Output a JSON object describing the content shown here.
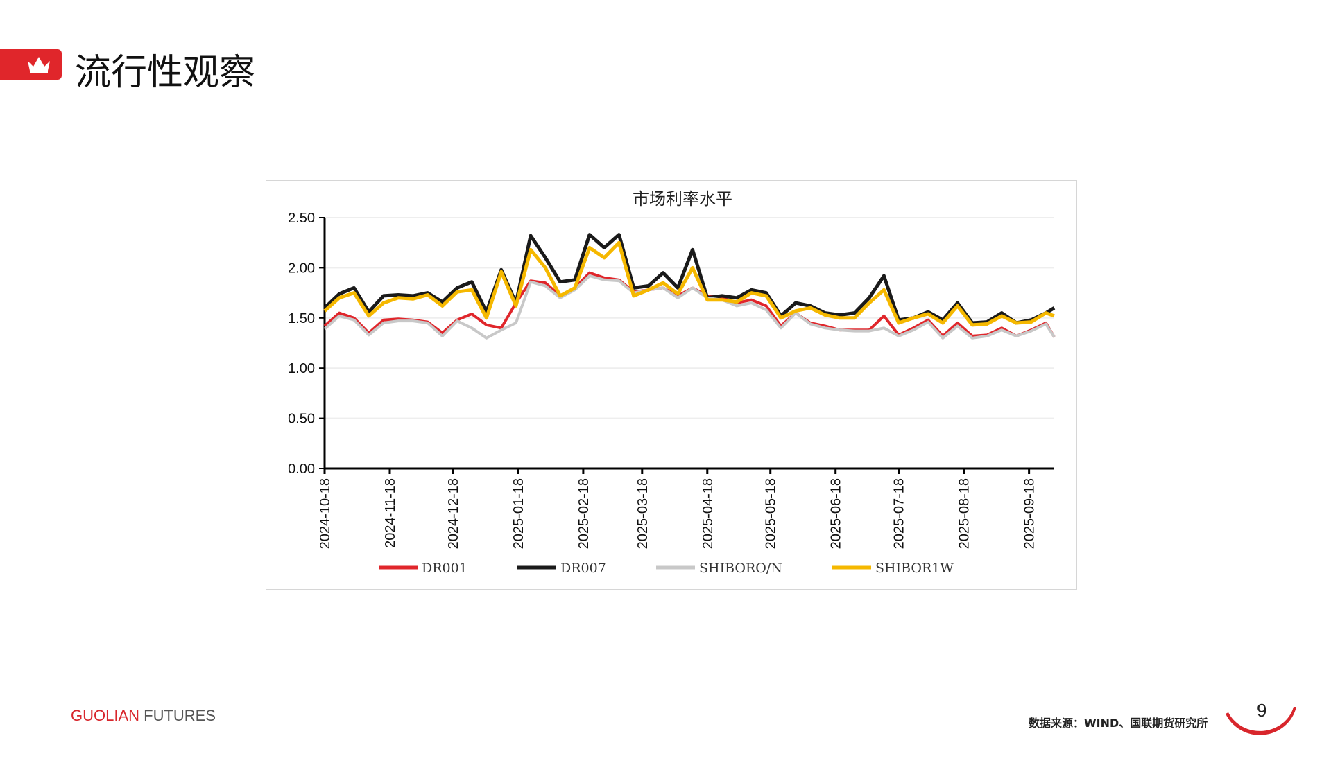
{
  "header": {
    "title": "流行性观察",
    "icon": "crown-icon",
    "accent": "#e0262b"
  },
  "footer": {
    "brand_part1": "GUOLIAN",
    "brand_part2": " FUTURES",
    "source": "数据来源：WIND、国联期货研究所",
    "page_number": "9"
  },
  "chart_data": {
    "type": "line",
    "title": "市场利率水平",
    "ylim": [
      0,
      2.5
    ],
    "yticks": [
      "0.00",
      "0.50",
      "1.00",
      "1.50",
      "2.00",
      "2.50"
    ],
    "xlim": [
      "2024-10-18",
      "2025-09-30"
    ],
    "xticks": [
      "2024-10-18",
      "2024-11-18",
      "2024-12-18",
      "2025-01-18",
      "2025-02-18",
      "2025-03-18",
      "2025-04-18",
      "2025-05-18",
      "2025-06-18",
      "2025-07-18",
      "2025-08-18",
      "2025-09-18"
    ],
    "grid": true,
    "legend": "bottom",
    "x": [
      "2024-10-18",
      "2024-10-25",
      "2024-11-01",
      "2024-11-08",
      "2024-11-15",
      "2024-11-22",
      "2024-11-29",
      "2024-12-06",
      "2024-12-13",
      "2024-12-20",
      "2024-12-27",
      "2025-01-03",
      "2025-01-10",
      "2025-01-17",
      "2025-01-24",
      "2025-01-31",
      "2025-02-07",
      "2025-02-14",
      "2025-02-21",
      "2025-02-28",
      "2025-03-07",
      "2025-03-14",
      "2025-03-21",
      "2025-03-28",
      "2025-04-04",
      "2025-04-11",
      "2025-04-18",
      "2025-04-25",
      "2025-05-02",
      "2025-05-09",
      "2025-05-16",
      "2025-05-23",
      "2025-05-30",
      "2025-06-06",
      "2025-06-13",
      "2025-06-20",
      "2025-06-27",
      "2025-07-04",
      "2025-07-11",
      "2025-07-18",
      "2025-07-25",
      "2025-08-01",
      "2025-08-08",
      "2025-08-15",
      "2025-08-22",
      "2025-08-29",
      "2025-09-05",
      "2025-09-12",
      "2025-09-19",
      "2025-09-26",
      "2025-09-30"
    ],
    "series": [
      {
        "name": "DR001",
        "color": "#e0262b",
        "values": [
          1.42,
          1.55,
          1.5,
          1.35,
          1.48,
          1.49,
          1.48,
          1.46,
          1.35,
          1.48,
          1.54,
          1.43,
          1.4,
          1.65,
          1.87,
          1.85,
          1.72,
          1.8,
          1.95,
          1.9,
          1.88,
          1.76,
          1.78,
          1.8,
          1.72,
          1.8,
          1.72,
          1.7,
          1.65,
          1.68,
          1.62,
          1.42,
          1.55,
          1.45,
          1.42,
          1.38,
          1.38,
          1.38,
          1.52,
          1.33,
          1.4,
          1.48,
          1.32,
          1.45,
          1.32,
          1.33,
          1.4,
          1.32,
          1.38,
          1.45,
          1.31
        ]
      },
      {
        "name": "DR007",
        "color": "#1a1a1a",
        "values": [
          1.6,
          1.74,
          1.8,
          1.56,
          1.72,
          1.73,
          1.72,
          1.75,
          1.66,
          1.8,
          1.86,
          1.56,
          1.98,
          1.65,
          2.32,
          2.1,
          1.86,
          1.88,
          2.33,
          2.2,
          2.33,
          1.8,
          1.82,
          1.95,
          1.8,
          2.18,
          1.7,
          1.72,
          1.7,
          1.78,
          1.75,
          1.52,
          1.65,
          1.62,
          1.55,
          1.53,
          1.55,
          1.7,
          1.92,
          1.48,
          1.5,
          1.56,
          1.48,
          1.65,
          1.45,
          1.46,
          1.55,
          1.45,
          1.48,
          1.55,
          1.6
        ]
      },
      {
        "name": "SHIBORO/N",
        "color": "#c8c8c8",
        "values": [
          1.39,
          1.52,
          1.48,
          1.33,
          1.45,
          1.47,
          1.47,
          1.45,
          1.32,
          1.47,
          1.4,
          1.3,
          1.38,
          1.45,
          1.86,
          1.82,
          1.7,
          1.78,
          1.92,
          1.88,
          1.87,
          1.75,
          1.78,
          1.8,
          1.7,
          1.8,
          1.7,
          1.68,
          1.62,
          1.65,
          1.58,
          1.4,
          1.55,
          1.44,
          1.4,
          1.38,
          1.37,
          1.37,
          1.4,
          1.32,
          1.38,
          1.46,
          1.3,
          1.42,
          1.3,
          1.32,
          1.38,
          1.32,
          1.37,
          1.44,
          1.31
        ]
      },
      {
        "name": "SHIBOR1W",
        "color": "#f5b800",
        "values": [
          1.57,
          1.7,
          1.75,
          1.52,
          1.65,
          1.7,
          1.69,
          1.73,
          1.62,
          1.76,
          1.78,
          1.5,
          1.96,
          1.62,
          2.18,
          2.0,
          1.72,
          1.8,
          2.2,
          2.1,
          2.25,
          1.72,
          1.78,
          1.85,
          1.74,
          2.0,
          1.68,
          1.68,
          1.66,
          1.75,
          1.72,
          1.5,
          1.57,
          1.6,
          1.53,
          1.5,
          1.5,
          1.65,
          1.78,
          1.45,
          1.5,
          1.54,
          1.45,
          1.62,
          1.43,
          1.44,
          1.52,
          1.45,
          1.46,
          1.55,
          1.52
        ]
      }
    ]
  }
}
